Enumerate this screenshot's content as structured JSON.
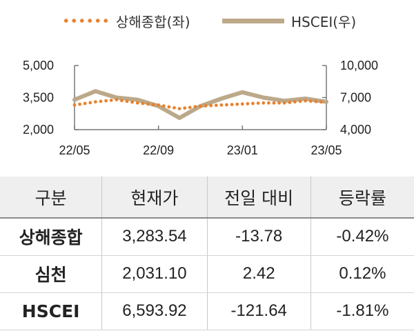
{
  "chart_data": {
    "type": "line",
    "legend_position": "top",
    "grid": false,
    "x_ticks": [
      "22/05",
      "22/09",
      "23/01",
      "23/05"
    ],
    "x": [
      "22/05",
      "22/06",
      "22/07",
      "22/08",
      "22/09",
      "22/10",
      "22/11",
      "22/12",
      "23/01",
      "23/02",
      "23/03",
      "23/04",
      "23/05"
    ],
    "series": [
      {
        "name": "상해종합(좌)",
        "axis": "left",
        "style": "dotted",
        "color": "#e8822e",
        "values": [
          3150,
          3300,
          3400,
          3250,
          3150,
          2980,
          3100,
          3150,
          3200,
          3250,
          3250,
          3350,
          3280
        ]
      },
      {
        "name": "HSCEI(우)",
        "axis": "right",
        "style": "solid",
        "color": "#bca98a",
        "values": [
          6800,
          7600,
          7000,
          6800,
          6200,
          5100,
          6200,
          6900,
          7500,
          7000,
          6700,
          6900,
          6600
        ]
      }
    ],
    "y_left": {
      "ticks": [
        "5,000",
        "3,500",
        "2,000"
      ],
      "range": [
        2000,
        5000
      ]
    },
    "y_right": {
      "ticks": [
        "10,000",
        "7,000",
        "4,000"
      ],
      "range": [
        4000,
        10000
      ]
    }
  },
  "table": {
    "headers": [
      "구분",
      "현재가",
      "전일 대비",
      "등락률"
    ],
    "rows": [
      [
        "상해종합",
        "3,283.54",
        "-13.78",
        "-0.42%"
      ],
      [
        "심천",
        "2,031.10",
        "2.42",
        "0.12%"
      ],
      [
        "HSCEI",
        "6,593.92",
        "-121.64",
        "-1.81%"
      ]
    ]
  }
}
